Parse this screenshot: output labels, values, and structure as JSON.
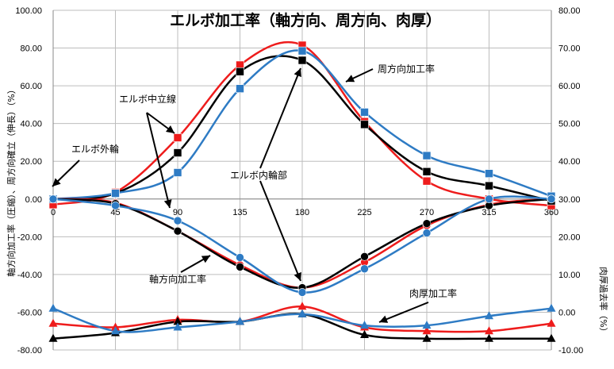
{
  "chart_data": {
    "type": "line",
    "title": "エルボ加工率（軸方向、周方向、肉厚）",
    "ylabel_left": "軸方向加工率（圧縮）、周方向確立（伸長）（%）",
    "ylabel_right": "肉厚過去率（%）",
    "x": [
      0,
      45,
      90,
      135,
      180,
      225,
      270,
      315,
      360
    ],
    "x_tick_labels": [
      "0",
      "45",
      "90",
      "135",
      "180",
      "225",
      "270",
      "315",
      "360"
    ],
    "ylim_left": [
      -80,
      100
    ],
    "ylim_right": [
      -10,
      80
    ],
    "y_ticks_left": [
      "100.00",
      "80.00",
      "60.00",
      "40.00",
      "20.00",
      "0.00",
      "-20.00",
      "-40.00",
      "-60.00",
      "-80.00"
    ],
    "y_ticks_right": [
      "80.00",
      "70.00",
      "60.00",
      "50.00",
      "40.00",
      "30.00",
      "20.00",
      "10.00",
      "0.00",
      "-10.00"
    ],
    "grid": true,
    "colors": {
      "red": "#ee1c1c",
      "black": "#000000",
      "blue": "#2e7bc4"
    },
    "groups": [
      {
        "label": "周方向加工率",
        "axis": "left",
        "marker": "square",
        "series": [
          {
            "color": "red",
            "values": [
              -3.0,
              3.5,
              32.5,
              71.0,
              81.5,
              41.0,
              9.5,
              0.0,
              -3.5
            ]
          },
          {
            "color": "black",
            "values": [
              0.0,
              3.0,
              24.5,
              67.5,
              73.5,
              39.5,
              14.5,
              7.0,
              -1.0
            ]
          },
          {
            "color": "blue",
            "values": [
              0.0,
              3.0,
              14.0,
              58.5,
              78.5,
              46.0,
              23.0,
              13.5,
              1.5
            ]
          }
        ]
      },
      {
        "label": "軸方向加工率",
        "axis": "left",
        "marker": "circle",
        "series": [
          {
            "color": "red",
            "values": [
              0.0,
              -2.0,
              -17.0,
              -35.0,
              -47.0,
              -33.5,
              -14.0,
              -3.0,
              0.0
            ]
          },
          {
            "color": "black",
            "values": [
              0.0,
              -2.5,
              -17.0,
              -36.0,
              -47.0,
              -30.5,
              -13.0,
              -3.5,
              0.0
            ]
          },
          {
            "color": "blue",
            "values": [
              0.0,
              -3.5,
              -11.5,
              -31.0,
              -49.5,
              -37.0,
              -18.0,
              0.0,
              0.0
            ]
          }
        ]
      },
      {
        "label": "肉厚加工率",
        "axis": "right",
        "marker": "triangle",
        "series": [
          {
            "color": "red",
            "values": [
              -3.0,
              -4.0,
              -2.0,
              -2.5,
              1.5,
              -4.0,
              -5.0,
              -5.0,
              -3.0
            ]
          },
          {
            "color": "black",
            "values": [
              -7.0,
              -5.5,
              -2.5,
              -2.5,
              -0.5,
              -6.0,
              -7.0,
              -7.0,
              -7.0
            ]
          },
          {
            "color": "blue",
            "values": [
              1.0,
              -5.0,
              -4.0,
              -2.5,
              -0.5,
              -3.5,
              -3.5,
              -1.0,
              1.0
            ]
          }
        ]
      }
    ],
    "annotations": [
      {
        "text": "エルボ外輪"
      },
      {
        "text": "エルボ中立線"
      },
      {
        "text": "エルボ内輪部"
      },
      {
        "text": "周方向加工率"
      },
      {
        "text": "軸方向加工率"
      },
      {
        "text": "肉厚加工率"
      }
    ]
  }
}
